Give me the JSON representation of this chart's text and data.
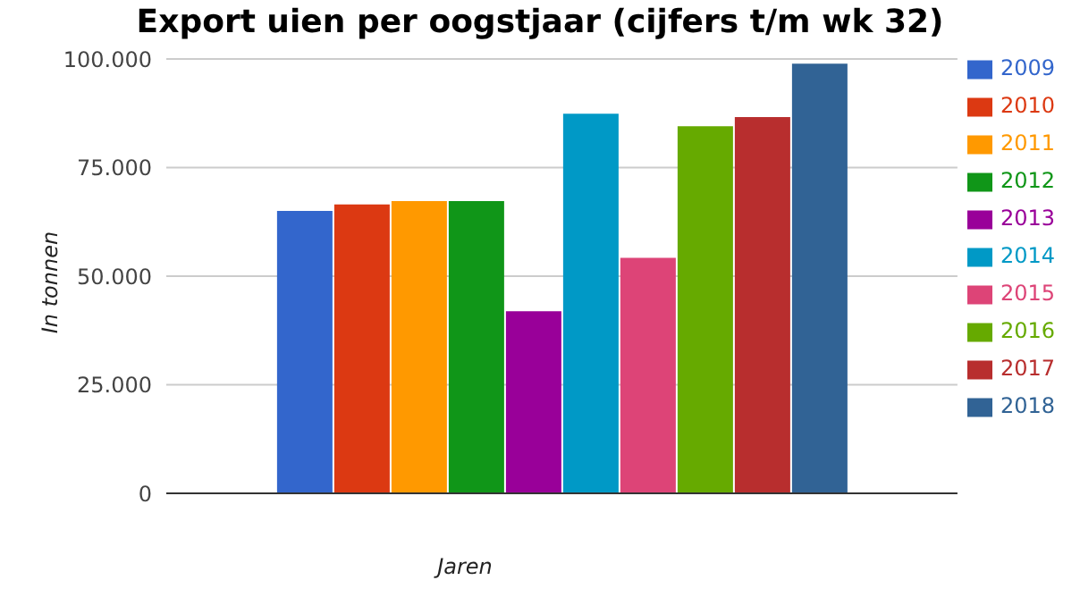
{
  "chart_data": {
    "type": "bar",
    "title": "Export uien per oogstjaar (cijfers t/m wk 32)",
    "xlabel": "Jaren",
    "ylabel": "In tonnen",
    "categories": [
      null
    ],
    "series": [
      {
        "name": "2009",
        "color": "#3366cc",
        "values": [
          65000
        ]
      },
      {
        "name": "2010",
        "color": "#dc3912",
        "values": [
          66500
        ]
      },
      {
        "name": "2011",
        "color": "#ff9900",
        "values": [
          67300
        ]
      },
      {
        "name": "2012",
        "color": "#109618",
        "values": [
          67300
        ]
      },
      {
        "name": "2013",
        "color": "#990099",
        "values": [
          41900
        ]
      },
      {
        "name": "2014",
        "color": "#0099c6",
        "values": [
          87400
        ]
      },
      {
        "name": "2015",
        "color": "#dd4477",
        "values": [
          54200
        ]
      },
      {
        "name": "2016",
        "color": "#66aa00",
        "values": [
          84500
        ]
      },
      {
        "name": "2017",
        "color": "#b82e2e",
        "values": [
          86600
        ]
      },
      {
        "name": "2018",
        "color": "#316395",
        "values": [
          98900
        ]
      }
    ],
    "ylim": [
      0,
      100000
    ],
    "yticks": [
      {
        "value": 0,
        "label": "0"
      },
      {
        "value": 25000,
        "label": "25.000"
      },
      {
        "value": 50000,
        "label": "50.000"
      },
      {
        "value": 75000,
        "label": "75.000"
      },
      {
        "value": 100000,
        "label": "100.000"
      }
    ],
    "grid": "y",
    "legend": "right"
  }
}
